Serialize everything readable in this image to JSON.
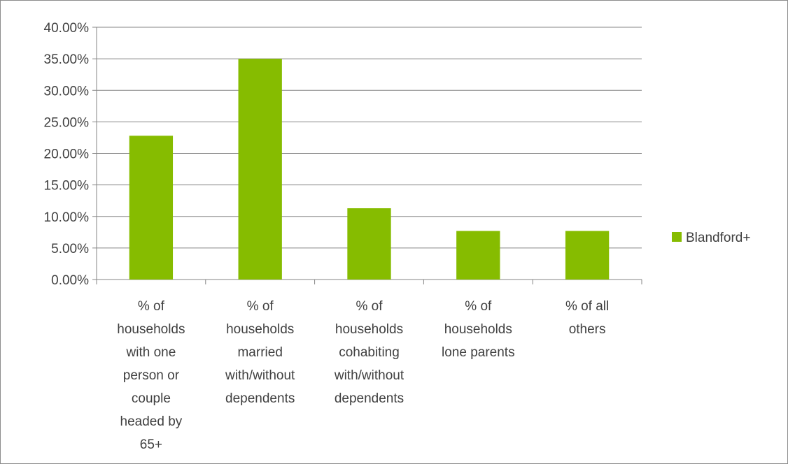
{
  "chart_data": {
    "type": "bar",
    "categories": [
      [
        "% of",
        "households",
        "with one",
        "person or",
        "couple",
        "headed by",
        "65+"
      ],
      [
        "% of",
        "households",
        "married",
        "with/without",
        "dependents"
      ],
      [
        "% of",
        "households",
        "cohabiting",
        "with/without",
        "dependents"
      ],
      [
        "% of",
        "households",
        "lone parents"
      ],
      [
        "% of all",
        "others"
      ]
    ],
    "series": [
      {
        "name": "Blandford+",
        "values": [
          0.228,
          0.35,
          0.113,
          0.077,
          0.077
        ],
        "color": "#86bc00"
      }
    ],
    "ylim": [
      0,
      0.4
    ],
    "yticks": [
      "0.00%",
      "5.00%",
      "10.00%",
      "15.00%",
      "20.00%",
      "25.00%",
      "30.00%",
      "35.00%",
      "40.00%"
    ],
    "grid": true,
    "legend_position": "right",
    "gridline_color": "#868686",
    "axis_color": "#868686"
  }
}
